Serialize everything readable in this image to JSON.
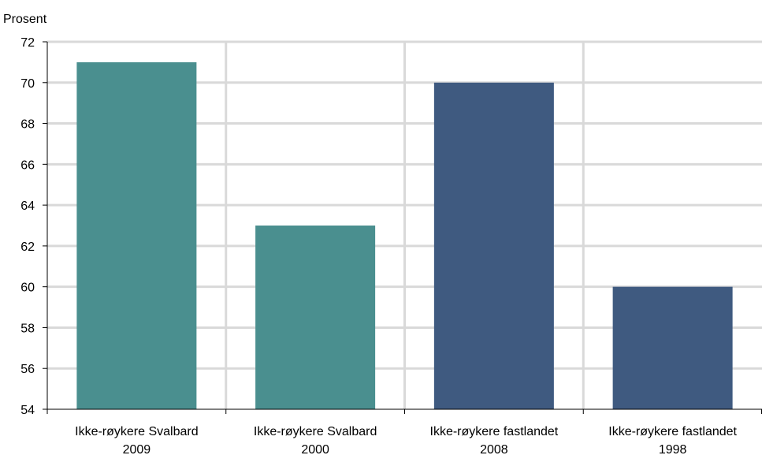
{
  "chart_data": {
    "type": "bar",
    "title": "",
    "ylabel": "Prosent",
    "xlabel": "",
    "ylim": [
      54,
      72
    ],
    "yticks": [
      54,
      56,
      58,
      60,
      62,
      64,
      66,
      68,
      70,
      72
    ],
    "grid": true,
    "categories": [
      [
        "Ikke-røykere Svalbard",
        "2009"
      ],
      [
        "Ikke-røykere Svalbard",
        "2000"
      ],
      [
        "Ikke-røykere fastlandet",
        "2008"
      ],
      [
        "Ikke-røykere fastlandet",
        "1998"
      ]
    ],
    "values": [
      71,
      63,
      70,
      60
    ],
    "colors": [
      "#4a8f8f",
      "#4a8f8f",
      "#3f5a80",
      "#3f5a80"
    ],
    "grid_color": "#d9d9d9",
    "axis_color": "#000000"
  }
}
